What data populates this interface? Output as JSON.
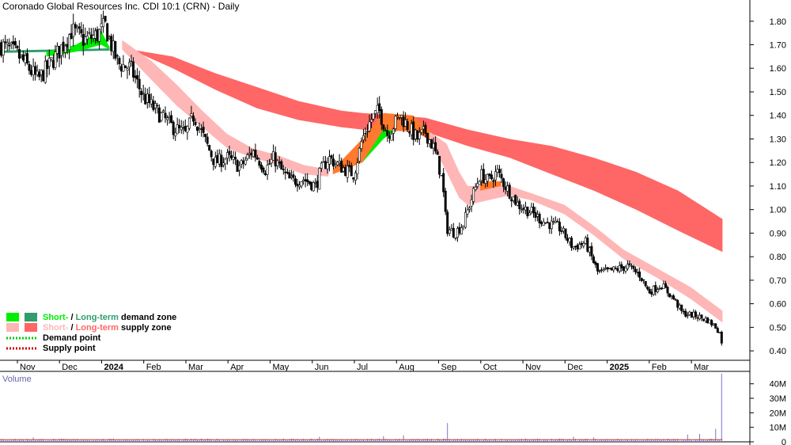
{
  "chart_data": {
    "type": "candlestick",
    "title": "Coronado Global Resources Inc. CDI 10:1 (CRN) - Daily",
    "price_axis": {
      "ylim": [
        0.36,
        1.89
      ],
      "ticks": [
        0.4,
        0.5,
        0.6,
        0.7,
        0.8,
        0.9,
        1.0,
        1.1,
        1.2,
        1.3,
        1.4,
        1.5,
        1.6,
        1.7,
        1.8
      ],
      "tick_labels": [
        "0.40",
        "0.50",
        "0.60",
        "0.70",
        "0.80",
        "0.90",
        "1.00",
        "1.10",
        "1.20",
        "1.30",
        "1.40",
        "1.50",
        "1.60",
        "1.70",
        "1.80"
      ]
    },
    "x_axis": {
      "labels": [
        "Nov",
        "Dec",
        "2024",
        "Feb",
        "Mar",
        "Apr",
        "May",
        "Jun",
        "Jul",
        "Aug",
        "Sep",
        "Oct",
        "Nov",
        "Dec",
        "2025",
        "Feb",
        "Mar"
      ],
      "month_index": [
        0,
        1,
        2,
        3,
        4,
        5,
        6,
        7,
        8,
        9,
        10,
        11,
        12,
        13,
        14,
        15,
        16
      ],
      "range_months": [
        -0.6,
        17.2
      ]
    },
    "close_path": [
      {
        "m": -0.6,
        "v": 1.7
      },
      {
        "m": -0.2,
        "v": 1.66
      },
      {
        "m": 0.0,
        "v": 1.62
      },
      {
        "m": 0.3,
        "v": 1.55
      },
      {
        "m": 0.6,
        "v": 1.62
      },
      {
        "m": 0.9,
        "v": 1.7
      },
      {
        "m": 1.1,
        "v": 1.76
      },
      {
        "m": 1.4,
        "v": 1.72
      },
      {
        "m": 1.7,
        "v": 1.74
      },
      {
        "m": 1.9,
        "v": 1.78
      },
      {
        "m": 2.0,
        "v": 1.72
      },
      {
        "m": 2.2,
        "v": 1.62
      },
      {
        "m": 2.5,
        "v": 1.6
      },
      {
        "m": 2.8,
        "v": 1.48
      },
      {
        "m": 3.1,
        "v": 1.42
      },
      {
        "m": 3.5,
        "v": 1.35
      },
      {
        "m": 3.8,
        "v": 1.32
      },
      {
        "m": 4.0,
        "v": 1.4
      },
      {
        "m": 4.2,
        "v": 1.32
      },
      {
        "m": 4.5,
        "v": 1.2
      },
      {
        "m": 4.8,
        "v": 1.22
      },
      {
        "m": 5.1,
        "v": 1.18
      },
      {
        "m": 5.4,
        "v": 1.25
      },
      {
        "m": 5.7,
        "v": 1.17
      },
      {
        "m": 5.9,
        "v": 1.22
      },
      {
        "m": 6.1,
        "v": 1.16
      },
      {
        "m": 6.3,
        "v": 1.12
      },
      {
        "m": 6.6,
        "v": 1.13
      },
      {
        "m": 6.9,
        "v": 1.1
      },
      {
        "m": 7.0,
        "v": 1.16
      },
      {
        "m": 7.2,
        "v": 1.22
      },
      {
        "m": 7.5,
        "v": 1.18
      },
      {
        "m": 7.8,
        "v": 1.15
      },
      {
        "m": 8.0,
        "v": 1.3
      },
      {
        "m": 8.2,
        "v": 1.38
      },
      {
        "m": 8.4,
        "v": 1.42
      },
      {
        "m": 8.6,
        "v": 1.32
      },
      {
        "m": 8.9,
        "v": 1.4
      },
      {
        "m": 9.1,
        "v": 1.35
      },
      {
        "m": 9.3,
        "v": 1.3
      },
      {
        "m": 9.5,
        "v": 1.33
      },
      {
        "m": 9.7,
        "v": 1.26
      },
      {
        "m": 9.8,
        "v": 1.2
      },
      {
        "m": 9.9,
        "v": 1.12
      },
      {
        "m": 10.0,
        "v": 0.92
      },
      {
        "m": 10.2,
        "v": 0.9
      },
      {
        "m": 10.4,
        "v": 0.94
      },
      {
        "m": 10.6,
        "v": 1.05
      },
      {
        "m": 10.8,
        "v": 1.15
      },
      {
        "m": 11.0,
        "v": 1.12
      },
      {
        "m": 11.2,
        "v": 1.16
      },
      {
        "m": 11.4,
        "v": 1.1
      },
      {
        "m": 11.7,
        "v": 1.02
      },
      {
        "m": 12.0,
        "v": 0.99
      },
      {
        "m": 12.3,
        "v": 0.95
      },
      {
        "m": 12.7,
        "v": 0.92
      },
      {
        "m": 13.0,
        "v": 0.84
      },
      {
        "m": 13.3,
        "v": 0.86
      },
      {
        "m": 13.6,
        "v": 0.73
      },
      {
        "m": 13.9,
        "v": 0.74
      },
      {
        "m": 14.3,
        "v": 0.76
      },
      {
        "m": 14.6,
        "v": 0.72
      },
      {
        "m": 14.8,
        "v": 0.65
      },
      {
        "m": 15.1,
        "v": 0.68
      },
      {
        "m": 15.4,
        "v": 0.62
      },
      {
        "m": 15.6,
        "v": 0.56
      },
      {
        "m": 15.9,
        "v": 0.55
      },
      {
        "m": 16.2,
        "v": 0.53
      },
      {
        "m": 16.4,
        "v": 0.5
      },
      {
        "m": 16.5,
        "v": 0.47
      },
      {
        "m": 16.55,
        "v": 0.42
      }
    ],
    "long_term_supply_zone": [
      {
        "m": 2.5,
        "lo": 1.68,
        "hi": 1.68
      },
      {
        "m": 3.5,
        "lo": 1.6,
        "hi": 1.65
      },
      {
        "m": 4.5,
        "lo": 1.51,
        "hi": 1.58
      },
      {
        "m": 5.5,
        "lo": 1.43,
        "hi": 1.52
      },
      {
        "m": 6.5,
        "lo": 1.38,
        "hi": 1.46
      },
      {
        "m": 7.5,
        "lo": 1.35,
        "hi": 1.42
      },
      {
        "m": 8.0,
        "lo": 1.34,
        "hi": 1.41
      },
      {
        "m": 9.5,
        "lo": 1.33,
        "hi": 1.39
      },
      {
        "m": 10.5,
        "lo": 1.27,
        "hi": 1.34
      },
      {
        "m": 11.5,
        "lo": 1.22,
        "hi": 1.3
      },
      {
        "m": 12.5,
        "lo": 1.15,
        "hi": 1.27
      },
      {
        "m": 13.5,
        "lo": 1.08,
        "hi": 1.22
      },
      {
        "m": 14.5,
        "lo": 1.0,
        "hi": 1.16
      },
      {
        "m": 15.5,
        "lo": 0.91,
        "hi": 1.08
      },
      {
        "m": 16.55,
        "lo": 0.82,
        "hi": 0.96
      }
    ],
    "short_term_supply_zone": [
      {
        "m": 2.3,
        "lo": 1.68,
        "hi": 1.72
      },
      {
        "m": 3.0,
        "lo": 1.55,
        "hi": 1.63
      },
      {
        "m": 3.6,
        "lo": 1.44,
        "hi": 1.53
      },
      {
        "m": 4.2,
        "lo": 1.35,
        "hi": 1.42
      },
      {
        "m": 4.8,
        "lo": 1.26,
        "hi": 1.32
      },
      {
        "m": 5.4,
        "lo": 1.22,
        "hi": 1.26
      },
      {
        "m": 6.0,
        "lo": 1.19,
        "hi": 1.23
      },
      {
        "m": 6.6,
        "lo": 1.15,
        "hi": 1.19
      },
      {
        "m": 7.2,
        "lo": 1.14,
        "hi": 1.17
      },
      {
        "m": 9.6,
        "lo": 1.3,
        "hi": 1.33
      },
      {
        "m": 10.0,
        "lo": 1.16,
        "hi": 1.28
      },
      {
        "m": 10.3,
        "lo": 1.05,
        "hi": 1.16
      },
      {
        "m": 10.5,
        "lo": 1.02,
        "hi": 1.1
      },
      {
        "m": 11.5,
        "lo": 1.06,
        "hi": 1.1
      },
      {
        "m": 12.0,
        "lo": 1.04,
        "hi": 1.07
      },
      {
        "m": 12.8,
        "lo": 0.98,
        "hi": 1.02
      },
      {
        "m": 13.5,
        "lo": 0.89,
        "hi": 0.93
      },
      {
        "m": 14.2,
        "lo": 0.79,
        "hi": 0.83
      },
      {
        "m": 15.0,
        "lo": 0.71,
        "hi": 0.75
      },
      {
        "m": 15.8,
        "lo": 0.62,
        "hi": 0.67
      },
      {
        "m": 16.55,
        "lo": 0.52,
        "hi": 0.57
      }
    ],
    "short_term_demand_zone": [
      {
        "m": 0.5,
        "lo": 1.65,
        "hi": 1.67
      },
      {
        "m": 1.2,
        "lo": 1.67,
        "hi": 1.7
      },
      {
        "m": 1.8,
        "lo": 1.7,
        "hi": 1.76
      },
      {
        "m": 2.0,
        "lo": 1.68,
        "hi": 1.69
      },
      {
        "m": 8.0,
        "lo": 1.2,
        "hi": 1.22
      },
      {
        "m": 8.5,
        "lo": 1.3,
        "hi": 1.35
      },
      {
        "m": 8.8,
        "lo": 1.34,
        "hi": 1.36
      },
      {
        "m": 9.0,
        "lo": 1.34,
        "hi": 1.37
      },
      {
        "m": 9.3,
        "lo": 1.33,
        "hi": 1.34
      }
    ],
    "long_term_demand_zone": [
      {
        "m": -0.6,
        "lo": 1.665,
        "hi": 1.675
      },
      {
        "m": 2.0,
        "lo": 1.675,
        "hi": 1.685
      }
    ],
    "orange_overlap_zone": [
      {
        "m": 7.3,
        "lo": 1.15,
        "hi": 1.17
      },
      {
        "m": 8.0,
        "lo": 1.2,
        "hi": 1.3
      },
      {
        "m": 8.5,
        "lo": 1.34,
        "hi": 1.41
      },
      {
        "m": 9.2,
        "lo": 1.33,
        "hi": 1.4
      },
      {
        "m": 9.6,
        "lo": 1.3,
        "hi": 1.34
      },
      {
        "m": 10.8,
        "lo": 1.08,
        "hi": 1.12
      },
      {
        "m": 11.3,
        "lo": 1.1,
        "hi": 1.12
      }
    ],
    "legend": {
      "placement": "bottom-left",
      "items": [
        {
          "prefix": "Short-",
          "sep": " / ",
          "mid": "Long-term",
          "suffix": " demand zone",
          "swatch_a": "#00ee00",
          "swatch_b": "#2e9e6e",
          "text_a": "#00ee00",
          "text_b": "#2e9e6e",
          "style": "swatch"
        },
        {
          "prefix": "Short-",
          "sep": " / ",
          "mid": "Long-term",
          "suffix": " supply zone",
          "swatch_a": "#ffb6b6",
          "swatch_b": "#ff6666",
          "text_a": "#ffb6b6",
          "text_b": "#ff6666",
          "style": "swatch"
        },
        {
          "label": "Demand point",
          "color": "#00cc00",
          "style": "dotted"
        },
        {
          "label": "Supply point",
          "color": "#cc0000",
          "style": "dotted"
        }
      ]
    },
    "volume": {
      "label": "Volume",
      "ylim": [
        0,
        48
      ],
      "ticks": [
        0,
        10,
        20,
        30,
        40
      ],
      "tick_labels": [
        "0",
        "10M",
        "20M",
        "30M",
        "40M"
      ],
      "typical_millions": 1.5,
      "spikes": [
        {
          "m": 0.2,
          "v": 3.0
        },
        {
          "m": 7.0,
          "v": 3.5
        },
        {
          "m": 8.5,
          "v": 4.0
        },
        {
          "m": 9.0,
          "v": 4.5
        },
        {
          "m": 10.0,
          "v": 13.0
        },
        {
          "m": 13.0,
          "v": 3.5
        },
        {
          "m": 13.5,
          "v": 3.0
        },
        {
          "m": 15.7,
          "v": 5.0
        },
        {
          "m": 16.0,
          "v": 5.5
        },
        {
          "m": 16.4,
          "v": 9.0
        },
        {
          "m": 16.55,
          "v": 47.0
        }
      ]
    },
    "colors": {
      "candle": "#000000",
      "long_supply": "#ff6666",
      "short_supply": "#ffb6b6",
      "short_demand": "#00ee00",
      "long_demand": "#2e9e6e",
      "overlap": "#ff7a2e",
      "volume_bar": "#7777cc",
      "volume_avg": "#cc3333"
    }
  }
}
